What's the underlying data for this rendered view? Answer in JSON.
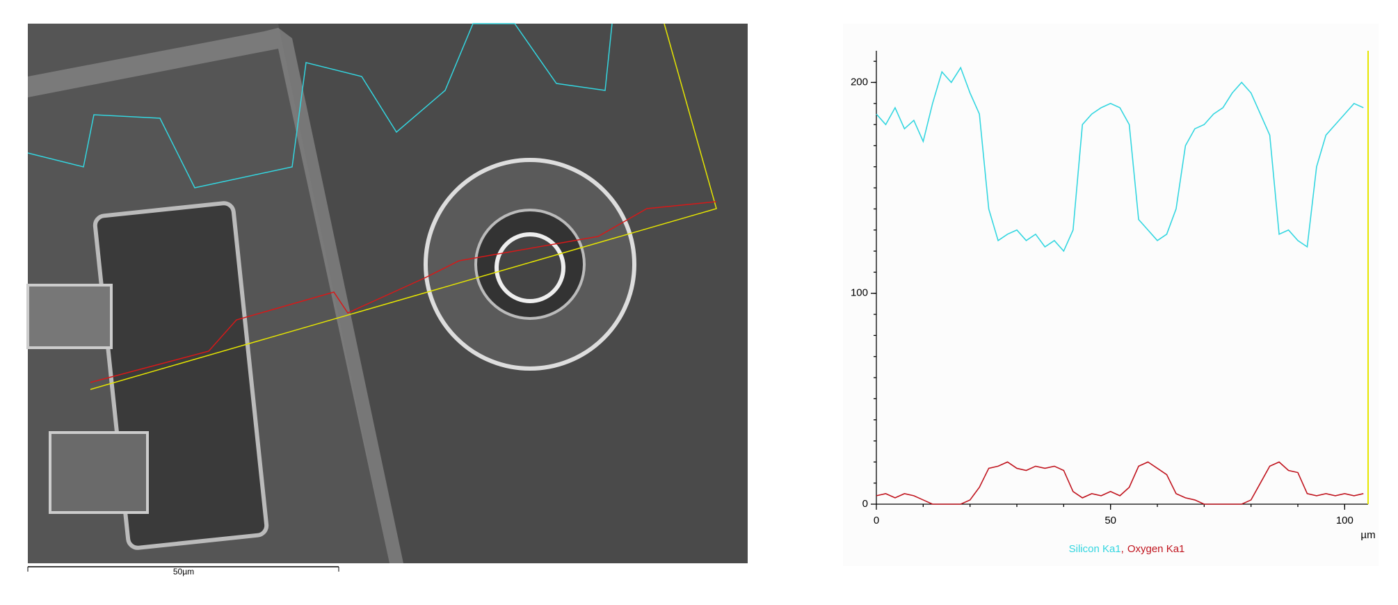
{
  "scale_bar_label": "50µm",
  "chart_data": {
    "type": "line",
    "xlabel": "µm",
    "legend_separator": ",",
    "x": [
      0,
      2,
      4,
      6,
      8,
      10,
      12,
      14,
      16,
      18,
      20,
      22,
      24,
      26,
      28,
      30,
      32,
      34,
      36,
      38,
      40,
      42,
      44,
      46,
      48,
      50,
      52,
      54,
      56,
      58,
      60,
      62,
      64,
      66,
      68,
      70,
      72,
      74,
      76,
      78,
      80,
      82,
      84,
      86,
      88,
      90,
      92,
      94,
      96,
      98,
      100,
      102,
      104
    ],
    "series": [
      {
        "name": "Silicon Ka1",
        "color": "#33d6e0",
        "values": [
          185,
          180,
          188,
          178,
          182,
          172,
          190,
          205,
          200,
          207,
          195,
          185,
          140,
          125,
          128,
          130,
          125,
          128,
          122,
          125,
          120,
          130,
          180,
          185,
          188,
          190,
          188,
          180,
          135,
          130,
          125,
          128,
          140,
          170,
          178,
          180,
          185,
          188,
          195,
          200,
          195,
          185,
          175,
          128,
          130,
          125,
          122,
          160,
          175,
          180,
          185,
          190,
          188
        ]
      },
      {
        "name": "Oxygen Ka1",
        "color": "#c0141e",
        "values": [
          4,
          5,
          3,
          5,
          4,
          2,
          0,
          0,
          0,
          0,
          2,
          8,
          17,
          18,
          20,
          17,
          16,
          18,
          17,
          18,
          16,
          6,
          3,
          5,
          4,
          6,
          4,
          8,
          18,
          20,
          17,
          14,
          5,
          3,
          2,
          0,
          0,
          0,
          0,
          0,
          2,
          10,
          18,
          20,
          16,
          15,
          5,
          4,
          5,
          4,
          5,
          4,
          5
        ]
      }
    ],
    "xlim": [
      0,
      105
    ],
    "xticks": [
      0,
      50,
      100
    ],
    "ylim": [
      0,
      215
    ],
    "yticks": [
      0,
      100,
      200
    ]
  }
}
